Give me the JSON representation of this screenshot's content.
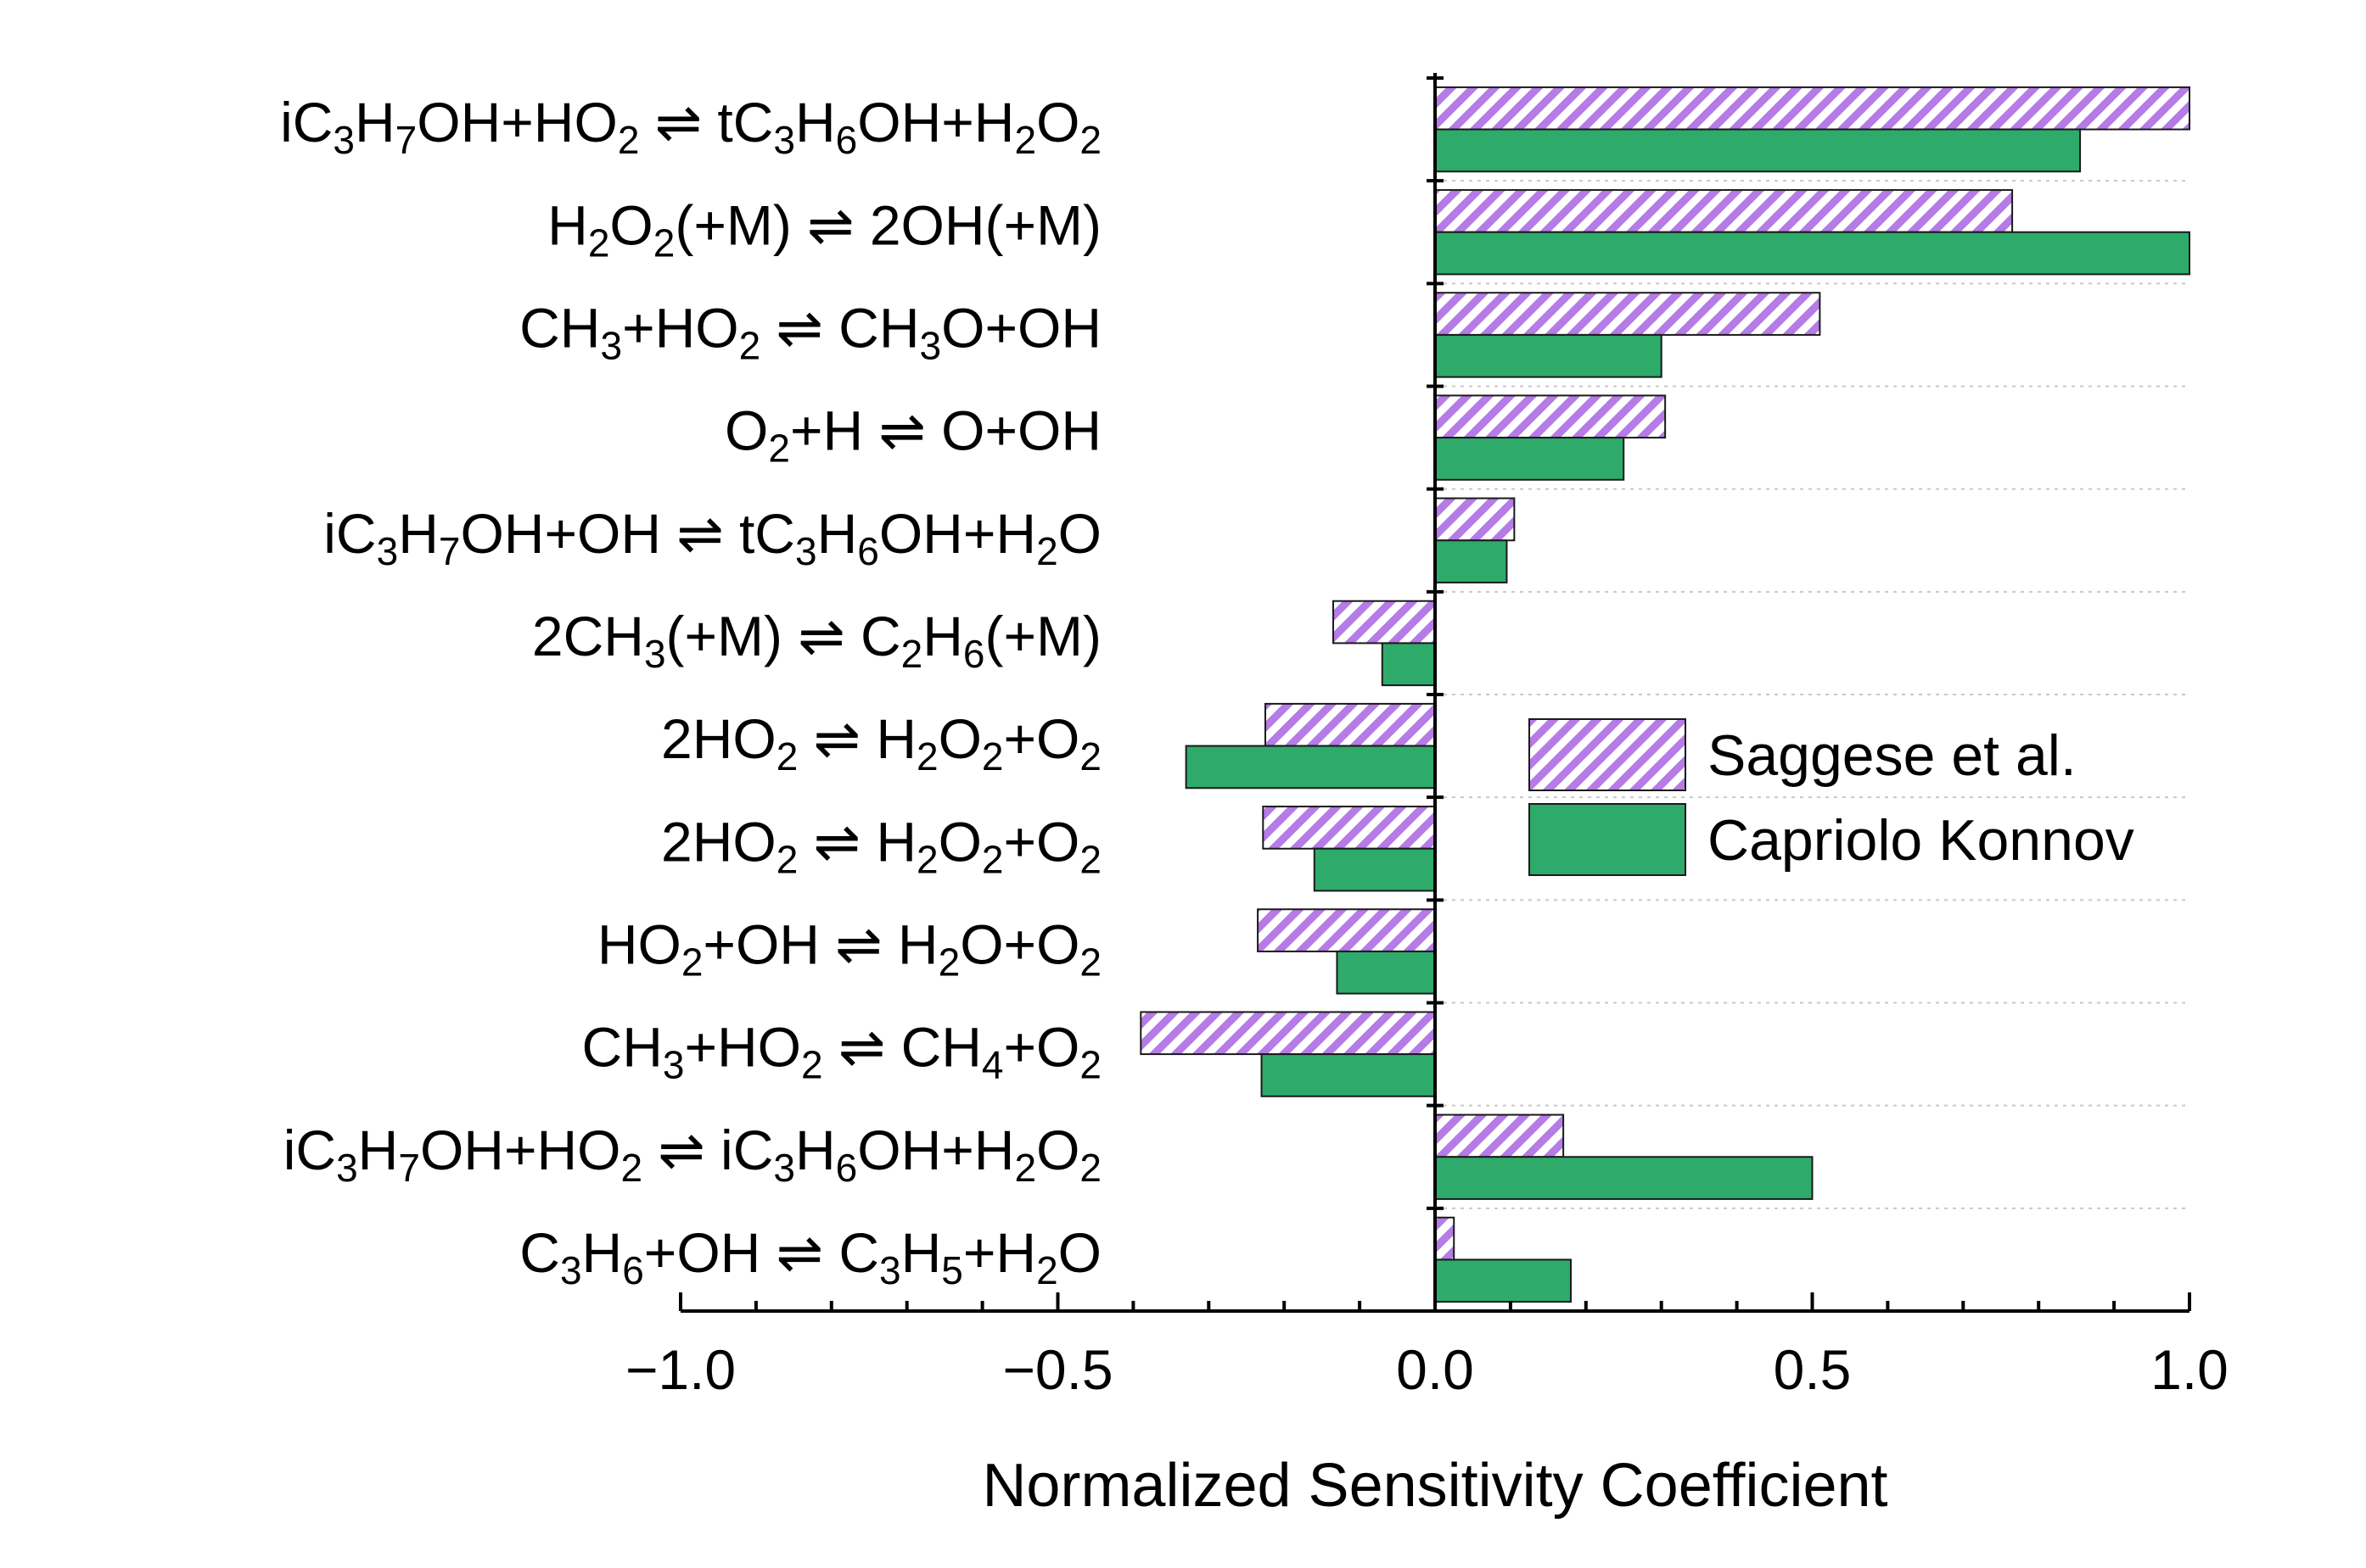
{
  "chart_data": {
    "type": "bar",
    "orientation": "horizontal",
    "title": "",
    "xlabel": "Normalized Sensitivity Coefficient",
    "ylabel": "",
    "xlim": [
      -1.0,
      1.0
    ],
    "xticks": [
      "−1.0",
      "−0.5",
      "0.0",
      "0.5",
      "1.0"
    ],
    "xtick_values": [
      -1.0,
      -0.5,
      0.0,
      0.5,
      1.0
    ],
    "grid": "horizontal dotted lines between categories",
    "legend_position": "center-right",
    "categories": [
      {
        "text": "iC<sub>3</sub>H<sub>7</sub>OH+HO<sub>2</sub> ⇌ tC<sub>3</sub>H<sub>6</sub>OH+H<sub>2</sub>O<sub>2</sub>"
      },
      {
        "text": "H<sub>2</sub>O<sub>2</sub>(+M) ⇌ 2OH(+M)"
      },
      {
        "text": "CH<sub>3</sub>+HO<sub>2</sub> ⇌ CH<sub>3</sub>O+OH"
      },
      {
        "text": "O<sub>2</sub>+H ⇌ O+OH"
      },
      {
        "text": "iC<sub>3</sub>H<sub>7</sub>OH+OH ⇌ tC<sub>3</sub>H<sub>6</sub>OH+H<sub>2</sub>O"
      },
      {
        "text": "2CH<sub>3</sub>(+M) ⇌ C<sub>2</sub>H<sub>6</sub>(+M)"
      },
      {
        "text": "2HO<sub>2</sub> ⇌ H<sub>2</sub>O<sub>2</sub>+O<sub>2</sub>"
      },
      {
        "text": "2HO<sub>2</sub> ⇌ H<sub>2</sub>O<sub>2</sub>+O<sub>2</sub>"
      },
      {
        "text": "HO<sub>2</sub>+OH ⇌ H<sub>2</sub>O+O<sub>2</sub>"
      },
      {
        "text": "CH<sub>3</sub>+HO<sub>2</sub> ⇌ CH<sub>4</sub>+O<sub>2</sub>"
      },
      {
        "text": "iC<sub>3</sub>H<sub>7</sub>OH+HO<sub>2</sub> ⇌ iC<sub>3</sub>H<sub>6</sub>OH+H<sub>2</sub>O<sub>2</sub>"
      },
      {
        "text": "C<sub>3</sub>H<sub>6</sub>+OH ⇌ C<sub>3</sub>H<sub>5</sub>+H<sub>2</sub>O"
      }
    ],
    "series": [
      {
        "name": "Saggese et al.",
        "fill": "hatched",
        "color": "#b57be6",
        "values": [
          1.0,
          0.765,
          0.51,
          0.305,
          0.105,
          -0.135,
          -0.225,
          -0.228,
          -0.235,
          -0.39,
          0.17,
          0.025
        ]
      },
      {
        "name": "Capriolo Konnov",
        "fill": "solid",
        "color": "#2eaa6a",
        "values": [
          0.855,
          1.0,
          0.3,
          0.25,
          0.095,
          -0.07,
          -0.33,
          -0.16,
          -0.13,
          -0.23,
          0.5,
          0.18
        ]
      }
    ]
  }
}
